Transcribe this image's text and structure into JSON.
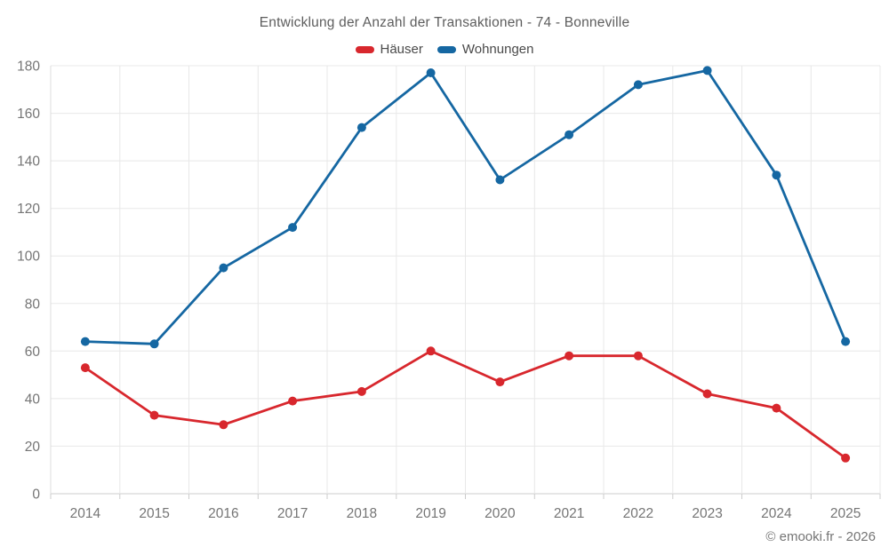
{
  "title": "Entwicklung der Anzahl der Transaktionen - 74 - Bonneville",
  "footer": "© emooki.fr - 2026",
  "legend": {
    "items": [
      {
        "label": "Häuser",
        "color": "#d8272d"
      },
      {
        "label": "Wohnungen",
        "color": "#1567a2"
      }
    ]
  },
  "chart_data": {
    "type": "line",
    "title": "Entwicklung der Anzahl der Transaktionen - 74 - Bonneville",
    "categories": [
      "2014",
      "2015",
      "2016",
      "2017",
      "2018",
      "2019",
      "2020",
      "2021",
      "2022",
      "2023",
      "2024",
      "2025"
    ],
    "series": [
      {
        "name": "Häuser",
        "color": "#d8272d",
        "values": [
          53,
          33,
          29,
          39,
          43,
          60,
          47,
          58,
          58,
          42,
          36,
          15
        ]
      },
      {
        "name": "Wohnungen",
        "color": "#1567a2",
        "values": [
          64,
          63,
          95,
          112,
          154,
          177,
          132,
          151,
          172,
          178,
          134,
          64
        ]
      }
    ],
    "xlabel": "",
    "ylabel": "",
    "ylim": [
      0,
      180
    ],
    "yticks": [
      0,
      20,
      40,
      60,
      80,
      100,
      120,
      140,
      160,
      180
    ],
    "grid": true,
    "legend_position": "top",
    "colors": {
      "grid_line": "#e8e8e8",
      "axis_line": "#cccccc",
      "tick_label": "#757575"
    }
  }
}
